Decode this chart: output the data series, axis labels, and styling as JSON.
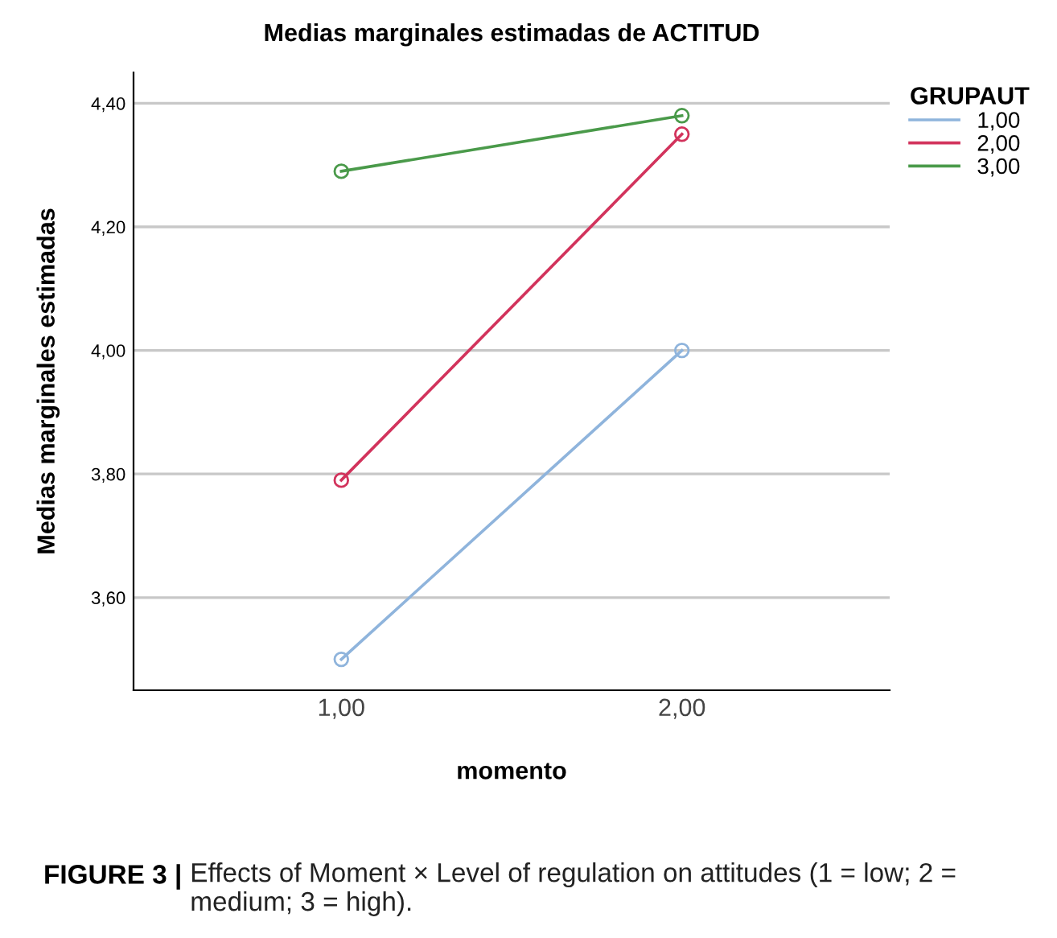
{
  "chart_data": {
    "type": "line",
    "title": "Medias marginales estimadas de ACTITUD",
    "xlabel": "momento",
    "ylabel": "Medias marginales estimadas",
    "legend_title": "GRUPAUT",
    "categories": [
      "1,00",
      "2,00"
    ],
    "series": [
      {
        "name": "1,00",
        "color": "#8fb4dc",
        "values": [
          3.5,
          4.0
        ]
      },
      {
        "name": "2,00",
        "color": "#d2335c",
        "values": [
          3.79,
          4.35
        ]
      },
      {
        "name": "3,00",
        "color": "#4a9a4a",
        "values": [
          4.29,
          4.38
        ]
      }
    ],
    "ylim": [
      3.45,
      4.45
    ],
    "yticks": [
      {
        "value": 3.6,
        "label": "3,60"
      },
      {
        "value": 3.8,
        "label": "3,80"
      },
      {
        "value": 4.0,
        "label": "4,00"
      },
      {
        "value": 4.2,
        "label": "4,20"
      },
      {
        "value": 4.4,
        "label": "4,40"
      }
    ],
    "grid": "y",
    "legend": "top right",
    "marker": "circle",
    "line_style": "solid",
    "annotations": [
      "FIGURE 3 |",
      "Effects of Moment × Level of regulation on attitudes (1 = low; 2 = medium; 3 = high)."
    ]
  }
}
